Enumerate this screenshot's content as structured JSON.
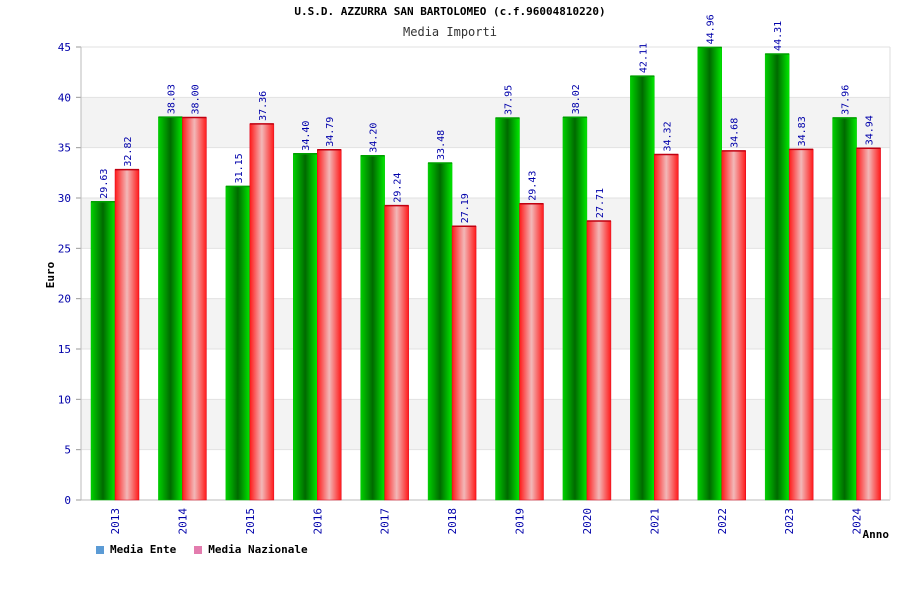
{
  "title": "U.S.D. AZZURRA SAN BARTOLOMEO (c.f.96004810220)",
  "subtitle": "Media Importi",
  "legend": [
    {
      "label": "Media Ente",
      "color": "#5b9bd5"
    },
    {
      "label": "Media Nazionale",
      "color": "#e37cae"
    }
  ],
  "chart_data": {
    "type": "bar",
    "title": "U.S.D. AZZURRA SAN BARTOLOMEO (c.f.96004810220)",
    "subtitle": "Media Importi",
    "xlabel": "Anno",
    "ylabel": "Euro",
    "ylim": [
      0,
      45
    ],
    "yticks": [
      0,
      5,
      10,
      15,
      20,
      25,
      30,
      35,
      40,
      45
    ],
    "grid": true,
    "legend_position": "bottom-left",
    "categories": [
      "2013",
      "2014",
      "2015",
      "2016",
      "2017",
      "2018",
      "2019",
      "2020",
      "2021",
      "2022",
      "2023",
      "2024"
    ],
    "series": [
      {
        "name": "Media Ente",
        "color": "#00c400",
        "values": [
          29.63,
          38.03,
          31.15,
          34.4,
          34.2,
          33.48,
          37.95,
          38.02,
          42.11,
          44.96,
          44.31,
          37.96
        ],
        "labels": [
          "29.63",
          "38.03",
          "31.15",
          "34.40",
          "34.20",
          "33.48",
          "37.95",
          "38.02",
          "42.11",
          "44.96",
          "44.31",
          "37.96"
        ]
      },
      {
        "name": "Media Nazionale",
        "color": "#e0001a",
        "values": [
          32.82,
          38.0,
          37.36,
          34.79,
          29.24,
          27.19,
          29.43,
          27.71,
          34.32,
          34.68,
          34.83,
          34.94
        ],
        "labels": [
          "32.82",
          "38.00",
          "37.36",
          "34.79",
          "29.24",
          "27.19",
          "29.43",
          "27.71",
          "34.32",
          "34.68",
          "34.83",
          "34.94"
        ]
      }
    ]
  }
}
